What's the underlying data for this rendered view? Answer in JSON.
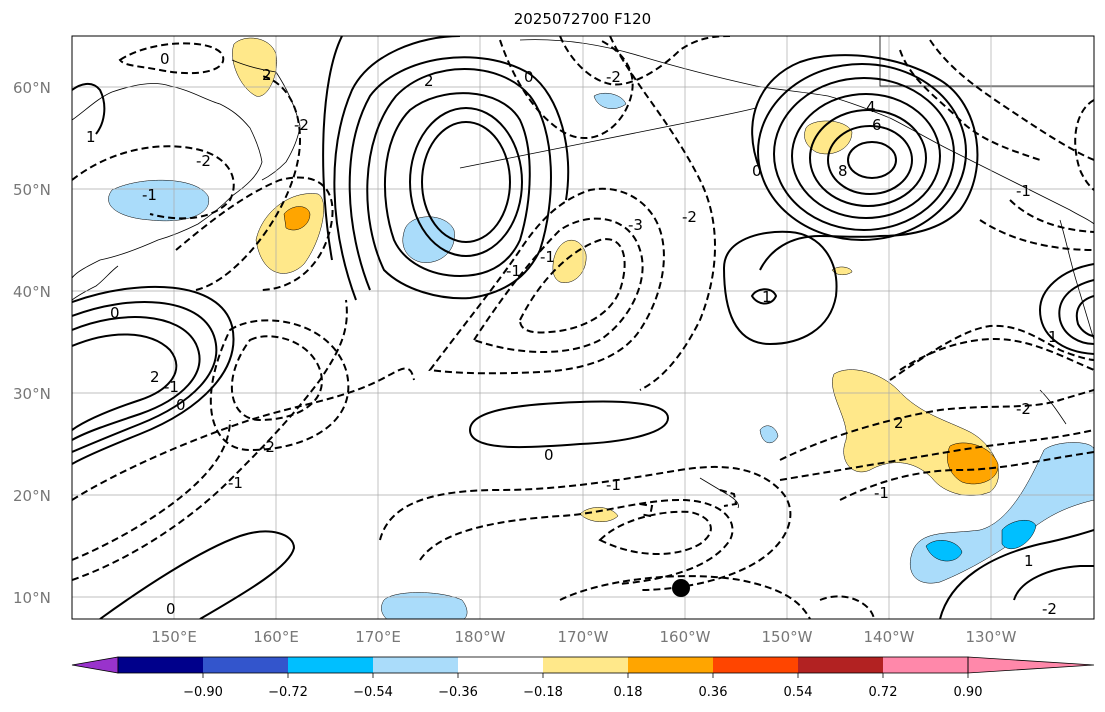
{
  "title": "2025072700 F120",
  "lat_labels": [
    "60°N",
    "50°N",
    "40°N",
    "30°N",
    "20°N",
    "10°N"
  ],
  "lon_labels": [
    "150°E",
    "160°E",
    "170°E",
    "180°W",
    "170°W",
    "160°W",
    "150°W",
    "140°W",
    "130°W"
  ],
  "colorbar": {
    "labels": [
      "−0.90",
      "−0.72",
      "−0.54",
      "−0.36",
      "−0.18",
      "0.18",
      "0.36",
      "0.54",
      "0.72",
      "0.90"
    ],
    "colors": [
      "#9933cc",
      "#00008b",
      "#3355cc",
      "#00bfff",
      "#aadcfa",
      "#ffffff",
      "#ffe88a",
      "#ffa500",
      "#ff4500",
      "#b22222",
      "#ff88aa"
    ]
  },
  "contour_labels": [
    "0",
    "-2",
    "2",
    "-1",
    "1",
    "-2",
    "4",
    "6",
    "8",
    "-1",
    "1",
    "0",
    "-3",
    "-1",
    "0",
    "-2",
    "2",
    "-2",
    "-1",
    "0",
    "-1",
    "0",
    "0",
    "-1",
    "2",
    "-2",
    "-1",
    "1",
    "-2",
    "-2",
    "-1",
    "1",
    "2",
    "0"
  ],
  "marker": {
    "name": "black dot",
    "color": "#000000"
  }
}
